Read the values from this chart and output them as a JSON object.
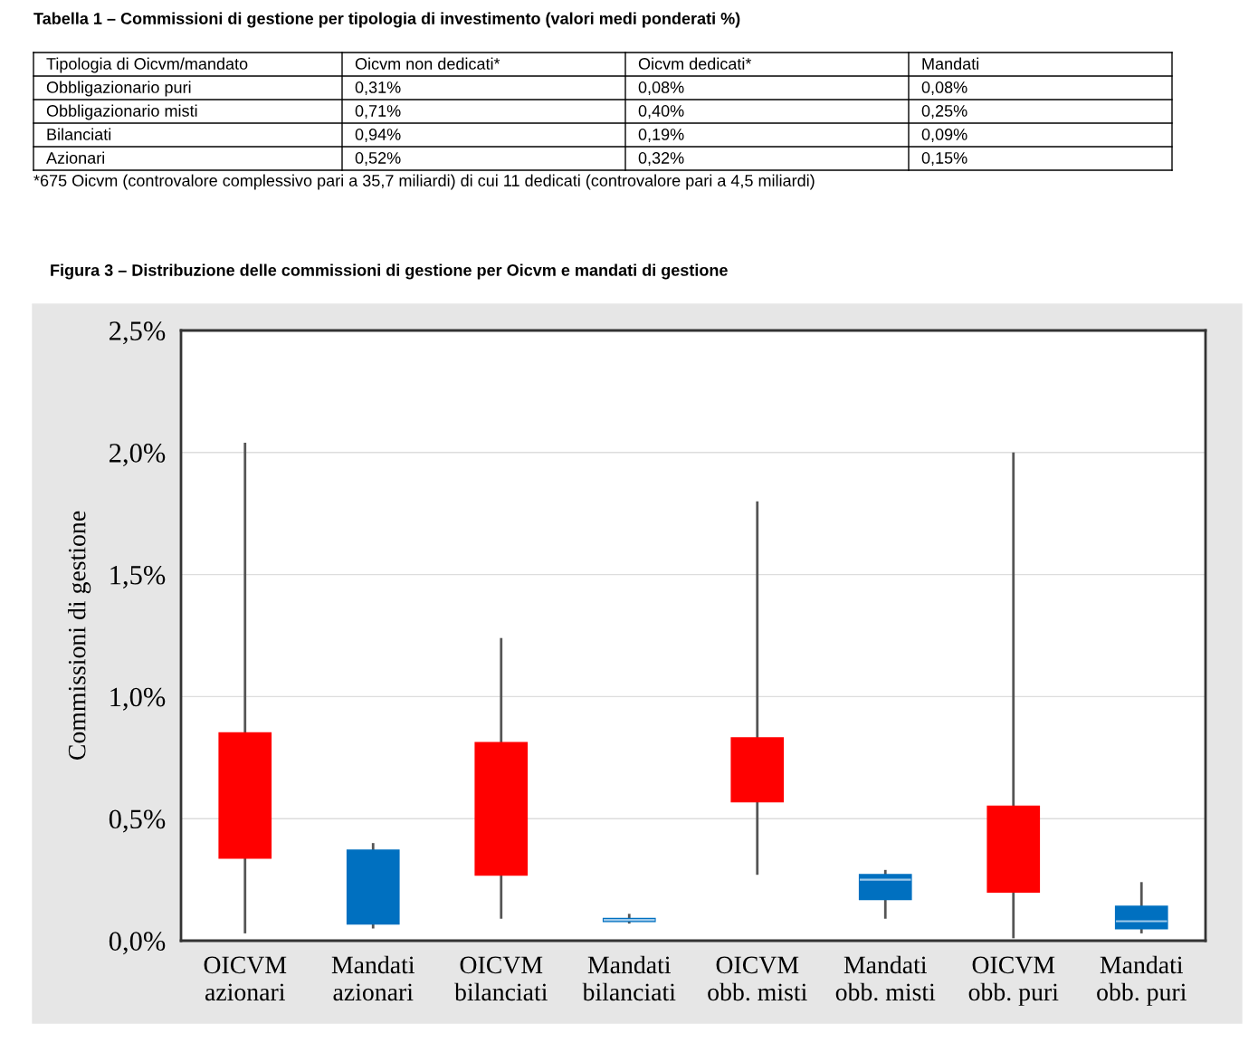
{
  "chart_data": [
    {
      "type": "other",
      "title": "Tabella 1 – Commissioni di gestione per tipologia di investimento (valori medi ponderati %)",
      "annotations": [
        "Tipologia di Oicvm/mandato",
        "Oicvm non dedicati*",
        "Oicvm dedicati*",
        "Mandati",
        "Obbligazionario puri",
        "0,31%",
        "0,08%",
        "0,08%",
        "Obbligazionario misti",
        "0,71%",
        "0,40%",
        "0,25%",
        "Bilanciati",
        "0,94%",
        "0,19%",
        "0,09%",
        "Azionari",
        "0,52%",
        "0,32%",
        "0,15%",
        "*675 Oicvm (controvalore complessivo pari a 35,7 miliardi) di cui 11 dedicati (controvalore pari a 4,5 miliardi)"
      ]
    },
    {
      "type": "box",
      "title": "Figura 3 – Distribuzione delle commissioni di gestione per Oicvm e mandati di gestione",
      "ylabel": "Commissioni di gestione",
      "categories": [
        "OICVM\nazionari",
        "Mandati\nazionari",
        "OICVM\nbilanciati",
        "Mandati\nbilanciati",
        "OICVM\nobb. misti",
        "Mandati\nobb. misti",
        "OICVM\nobb. puri",
        "Mandati\nobb. puri"
      ],
      "colors": [
        "#ff0000",
        "#0070c0",
        "#ff0000",
        "#0070c0",
        "#ff0000",
        "#0070c0",
        "#ff0000",
        "#0070c0"
      ],
      "boxes": [
        {
          "low": 0.03,
          "q1": 0.34,
          "median": null,
          "q3": 0.85,
          "high": 2.04
        },
        {
          "low": 0.05,
          "q1": 0.07,
          "median": null,
          "q3": 0.37,
          "high": 0.4
        },
        {
          "low": 0.09,
          "q1": 0.27,
          "median": null,
          "q3": 0.81,
          "high": 1.24
        },
        {
          "low": 0.07,
          "q1": 0.08,
          "median": 0.085,
          "q3": 0.09,
          "high": 0.11
        },
        {
          "low": 0.27,
          "q1": 0.57,
          "median": null,
          "q3": 0.83,
          "high": 1.8
        },
        {
          "low": 0.09,
          "q1": 0.17,
          "median": 0.25,
          "q3": 0.27,
          "high": 0.29
        },
        {
          "low": 0.01,
          "q1": 0.2,
          "median": null,
          "q3": 0.55,
          "high": 2.0
        },
        {
          "low": 0.03,
          "q1": 0.05,
          "median": 0.08,
          "q3": 0.14,
          "high": 0.24
        }
      ],
      "ylim": [
        0,
        2.5
      ],
      "yticks": [
        {
          "value": 0,
          "label": "0,0%"
        },
        {
          "value": 0.5,
          "label": "0,5%"
        },
        {
          "value": 1.0,
          "label": "1,0%"
        },
        {
          "value": 1.5,
          "label": "1,5%"
        },
        {
          "value": 2.0,
          "label": "2,0%"
        },
        {
          "value": 2.5,
          "label": "2,5%"
        }
      ],
      "grid": "y"
    }
  ]
}
